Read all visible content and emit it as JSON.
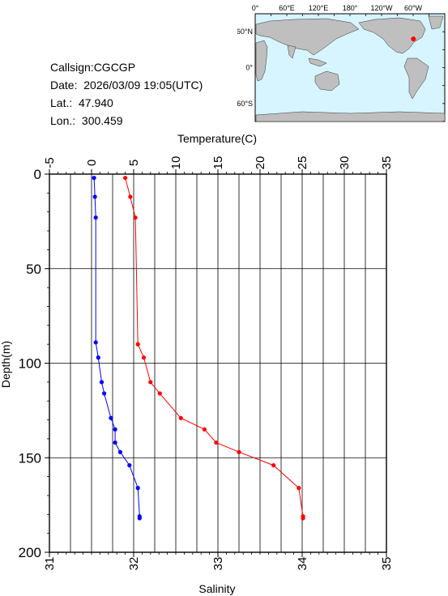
{
  "station": {
    "callsign_line": "Callsign:CGCGP",
    "date_line": "Date:  2026/03/09 19:05(UTC)",
    "lat_line": "Lat.:  47.940",
    "lon_line": "Lon.:  300.459"
  },
  "map": {
    "top_labels": [
      "0°",
      "60°E",
      "120°E",
      "180°",
      "120°W",
      "60°W"
    ],
    "left_labels": [
      "60°N",
      "0°",
      "60°S"
    ],
    "ocean_color": "#d6f5ff",
    "land_color": "#bfbfbf",
    "marker_color": "#ff0000",
    "marker_lon": 300.459,
    "marker_lat": 47.94
  },
  "chart_data": {
    "type": "line",
    "temperature_axis": {
      "label": "Temperature(C)",
      "range": [
        -5,
        35
      ],
      "ticks": [
        "-5",
        "0",
        "5",
        "10",
        "15",
        "20",
        "25",
        "30",
        "35"
      ],
      "tick_values": [
        -5,
        0,
        5,
        10,
        15,
        20,
        25,
        30,
        35
      ]
    },
    "salinity_axis": {
      "label": "Salinity",
      "range": [
        31,
        35
      ],
      "ticks": [
        "31",
        "32",
        "33",
        "34",
        "35"
      ],
      "tick_values": [
        31,
        32,
        33,
        34,
        35
      ]
    },
    "depth_axis": {
      "label": "Depth(m)",
      "range": [
        0,
        200
      ],
      "ticks": [
        "0",
        "50",
        "100",
        "150",
        "200"
      ],
      "tick_values": [
        0,
        50,
        100,
        150,
        200
      ]
    },
    "grid": true,
    "series": [
      {
        "color": "#ff0000",
        "axis": "temperature",
        "points": [
          {
            "depth": 2,
            "value": 4.0
          },
          {
            "depth": 12,
            "value": 4.6
          },
          {
            "depth": 23,
            "value": 5.2
          },
          {
            "depth": 90,
            "value": 5.5
          },
          {
            "depth": 97,
            "value": 6.2
          },
          {
            "depth": 110,
            "value": 7.0
          },
          {
            "depth": 116,
            "value": 8.1
          },
          {
            "depth": 129,
            "value": 10.6
          },
          {
            "depth": 135,
            "value": 13.4
          },
          {
            "depth": 142,
            "value": 14.8
          },
          {
            "depth": 147,
            "value": 17.5
          },
          {
            "depth": 154,
            "value": 21.6
          },
          {
            "depth": 166,
            "value": 24.6
          },
          {
            "depth": 181,
            "value": 25.1
          },
          {
            "depth": 182,
            "value": 25.1
          }
        ]
      },
      {
        "color": "#0000ff",
        "axis": "salinity",
        "points": [
          {
            "depth": 2,
            "value": 31.53
          },
          {
            "depth": 12,
            "value": 31.54
          },
          {
            "depth": 23,
            "value": 31.55
          },
          {
            "depth": 89,
            "value": 31.55
          },
          {
            "depth": 97,
            "value": 31.58
          },
          {
            "depth": 110,
            "value": 31.62
          },
          {
            "depth": 116,
            "value": 31.65
          },
          {
            "depth": 129,
            "value": 31.73
          },
          {
            "depth": 135,
            "value": 31.78
          },
          {
            "depth": 142,
            "value": 31.78
          },
          {
            "depth": 147,
            "value": 31.84
          },
          {
            "depth": 154,
            "value": 31.95
          },
          {
            "depth": 166,
            "value": 32.05
          },
          {
            "depth": 181,
            "value": 32.07
          },
          {
            "depth": 182,
            "value": 32.07
          }
        ]
      }
    ]
  }
}
